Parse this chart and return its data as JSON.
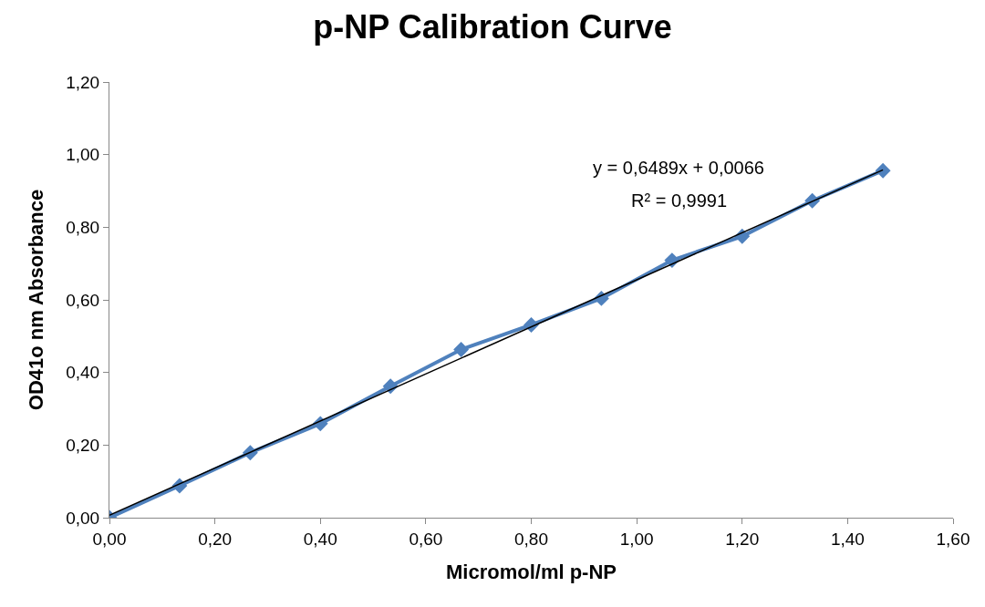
{
  "chart_data": {
    "type": "line",
    "title": "p-NP Calibration Curve",
    "xlabel": "Micromol/ml p-NP",
    "ylabel": "OD41o nm Absorbance",
    "x": [
      0,
      0.133,
      0.267,
      0.4,
      0.533,
      0.667,
      0.8,
      0.933,
      1.067,
      1.2,
      1.333,
      1.467
    ],
    "series": [
      {
        "color": "#4f81bd",
        "values": [
          0,
          0.088,
          0.179,
          0.259,
          0.362,
          0.463,
          0.531,
          0.604,
          0.709,
          0.775,
          0.873,
          0.956
        ]
      },
      {
        "type": "line",
        "color": "#000000",
        "x": [
          0,
          1.467
        ],
        "values": [
          0.007,
          0.958
        ],
        "marker": "none"
      }
    ],
    "annotations": [
      "y = 0,6489x + 0,0066",
      "R² = 0,9991"
    ],
    "xlim": [
      0,
      1.6
    ],
    "ylim": [
      0,
      1.2
    ],
    "xticks": [
      {
        "value": 0,
        "label": "0,00"
      },
      {
        "value": 0.2,
        "label": "0,20"
      },
      {
        "value": 0.4,
        "label": "0,40"
      },
      {
        "value": 0.6,
        "label": "0,60"
      },
      {
        "value": 0.8,
        "label": "0,80"
      },
      {
        "value": 1,
        "label": "1,00"
      },
      {
        "value": 1.2,
        "label": "1,20"
      },
      {
        "value": 1.4,
        "label": "1,40"
      },
      {
        "value": 1.6,
        "label": "1,60"
      }
    ],
    "yticks": [
      {
        "value": 0,
        "label": "0,00"
      },
      {
        "value": 0.2,
        "label": "0,20"
      },
      {
        "value": 0.4,
        "label": "0,40"
      },
      {
        "value": 0.6,
        "label": "0,60"
      },
      {
        "value": 0.8,
        "label": "0,80"
      },
      {
        "value": 1,
        "label": "1,00"
      },
      {
        "value": 1.2,
        "label": "1,20"
      }
    ],
    "grid": false,
    "marker": "diamond",
    "line_style": "solid"
  }
}
